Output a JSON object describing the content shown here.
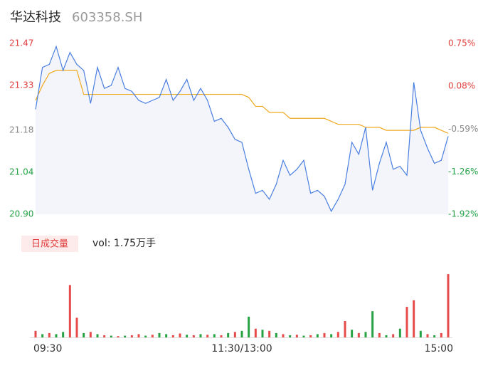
{
  "chart_data": [
    {
      "type": "line",
      "title": "华达科技",
      "subtitle": "603358.SH",
      "x": [
        0,
        4,
        8,
        12,
        16,
        20,
        24,
        28,
        32,
        36,
        40,
        44,
        48,
        52,
        56,
        60,
        64,
        68,
        72,
        76,
        80,
        84,
        88,
        92,
        96,
        100,
        104,
        108,
        112,
        116,
        120,
        124,
        128,
        132,
        136,
        140,
        144,
        148,
        152,
        156,
        160,
        164,
        168,
        172,
        176,
        180,
        184,
        188,
        192,
        196,
        200,
        204,
        208,
        212,
        216,
        220,
        224,
        228,
        232,
        236,
        240
      ],
      "xlim": [
        0,
        240
      ],
      "xticks": [
        {
          "value": 0,
          "label": "09:30"
        },
        {
          "value": 120,
          "label": "11:30/13:00"
        },
        {
          "value": 240,
          "label": "15:00"
        }
      ],
      "ylim": [
        20.9,
        21.47
      ],
      "yticks": [
        21.47,
        21.33,
        21.18,
        21.04,
        {
          "value": 20.9,
          "label": "20.90"
        }
      ],
      "ytick_colors": [
        "#e03c3c",
        "#e03c3c",
        "#888888",
        "#22a045",
        "#22a045"
      ],
      "y2lim": [
        -1.92,
        0.75
      ],
      "y2ticks": [
        {
          "value": 0.75,
          "label": "0.75%"
        },
        {
          "value": 0.08,
          "label": "0.08%"
        },
        {
          "value": -0.59,
          "label": "-0.59%"
        },
        {
          "value": -1.26,
          "label": "-1.26%"
        },
        {
          "value": -1.92,
          "label": "-1.92%"
        }
      ],
      "area_color": "#f3f5fb",
      "series": [
        {
          "color": "#4a7fe0",
          "values": [
            21.25,
            21.39,
            21.4,
            21.46,
            21.38,
            21.44,
            21.4,
            21.38,
            21.27,
            21.39,
            21.32,
            21.33,
            21.39,
            21.32,
            21.31,
            21.28,
            21.27,
            21.28,
            21.29,
            21.35,
            21.28,
            21.31,
            21.35,
            21.28,
            21.32,
            21.28,
            21.21,
            21.22,
            21.19,
            21.15,
            21.14,
            21.05,
            20.97,
            20.98,
            20.95,
            21.0,
            21.08,
            21.03,
            21.05,
            21.08,
            20.97,
            20.98,
            20.96,
            20.91,
            20.95,
            21.0,
            21.14,
            21.1,
            21.19,
            20.98,
            21.07,
            21.14,
            21.05,
            21.06,
            21.03,
            21.34,
            21.18,
            21.12,
            21.07,
            21.08,
            21.16
          ]
        },
        {
          "color": "#f0a81e",
          "values": [
            21.28,
            21.33,
            21.37,
            21.38,
            21.38,
            21.38,
            21.38,
            21.3,
            21.3,
            21.3,
            21.3,
            21.3,
            21.3,
            21.3,
            21.3,
            21.3,
            21.3,
            21.3,
            21.3,
            21.3,
            21.3,
            21.3,
            21.3,
            21.3,
            21.3,
            21.3,
            21.3,
            21.3,
            21.3,
            21.3,
            21.3,
            21.29,
            21.26,
            21.26,
            21.24,
            21.24,
            21.24,
            21.22,
            21.22,
            21.22,
            21.22,
            21.22,
            21.22,
            21.21,
            21.2,
            21.2,
            21.2,
            21.2,
            21.19,
            21.19,
            21.19,
            21.18,
            21.18,
            21.18,
            21.18,
            21.18,
            21.19,
            21.19,
            21.19,
            21.18,
            21.17
          ]
        }
      ]
    },
    {
      "type": "bar",
      "label": "日成交量",
      "summary": "vol: 1.75万手",
      "ylim": [
        0,
        3000
      ],
      "up_color": "#e64a4a",
      "down_color": "#27a243",
      "values": [
        300,
        150,
        200,
        150,
        250,
        2400,
        900,
        200,
        250,
        150,
        100,
        80,
        60,
        80,
        100,
        150,
        80,
        120,
        200,
        150,
        100,
        180,
        120,
        100,
        150,
        120,
        150,
        100,
        200,
        250,
        300,
        950,
        400,
        350,
        300,
        200,
        150,
        100,
        120,
        80,
        100,
        150,
        200,
        150,
        250,
        750,
        350,
        200,
        250,
        1200,
        200,
        100,
        150,
        400,
        1400,
        1700,
        300,
        150,
        100,
        200,
        2900
      ],
      "directions": [
        "up",
        "down",
        "up",
        "down",
        "down",
        "up",
        "up",
        "down",
        "up",
        "down",
        "up",
        "down",
        "up",
        "down",
        "up",
        "up",
        "down",
        "up",
        "down",
        "down",
        "up",
        "up",
        "down",
        "up",
        "down",
        "up",
        "down",
        "up",
        "down",
        "up",
        "down",
        "down",
        "up",
        "down",
        "up",
        "down",
        "up",
        "down",
        "up",
        "down",
        "up",
        "down",
        "up",
        "down",
        "up",
        "up",
        "down",
        "up",
        "down",
        "down",
        "up",
        "down",
        "up",
        "down",
        "up",
        "up",
        "down",
        "up",
        "down",
        "up",
        "up"
      ]
    }
  ]
}
